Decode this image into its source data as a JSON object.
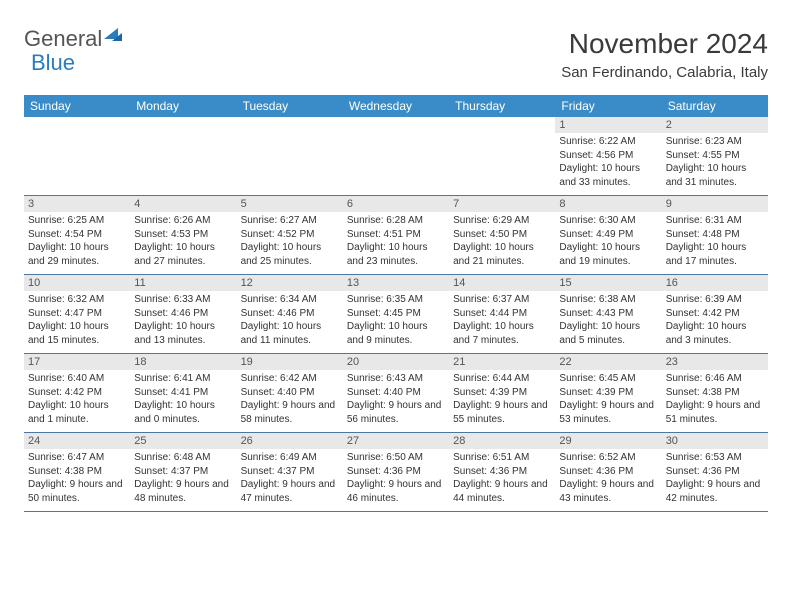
{
  "logo": {
    "text1": "General",
    "text2": "Blue"
  },
  "title": "November 2024",
  "location": "San Ferdinando, Calabria, Italy",
  "colors": {
    "header_bg": "#3a8cc9",
    "header_text": "#ffffff",
    "daynum_bg": "#e8e8e8",
    "row_border": "#4a77a4",
    "body_text": "#333333",
    "title_text": "#3a3a3a"
  },
  "day_labels": [
    "Sunday",
    "Monday",
    "Tuesday",
    "Wednesday",
    "Thursday",
    "Friday",
    "Saturday"
  ],
  "first_weekday": 5,
  "days": [
    {
      "n": 1,
      "sunrise": "6:22 AM",
      "sunset": "4:56 PM",
      "daylight": "10 hours and 33 minutes."
    },
    {
      "n": 2,
      "sunrise": "6:23 AM",
      "sunset": "4:55 PM",
      "daylight": "10 hours and 31 minutes."
    },
    {
      "n": 3,
      "sunrise": "6:25 AM",
      "sunset": "4:54 PM",
      "daylight": "10 hours and 29 minutes."
    },
    {
      "n": 4,
      "sunrise": "6:26 AM",
      "sunset": "4:53 PM",
      "daylight": "10 hours and 27 minutes."
    },
    {
      "n": 5,
      "sunrise": "6:27 AM",
      "sunset": "4:52 PM",
      "daylight": "10 hours and 25 minutes."
    },
    {
      "n": 6,
      "sunrise": "6:28 AM",
      "sunset": "4:51 PM",
      "daylight": "10 hours and 23 minutes."
    },
    {
      "n": 7,
      "sunrise": "6:29 AM",
      "sunset": "4:50 PM",
      "daylight": "10 hours and 21 minutes."
    },
    {
      "n": 8,
      "sunrise": "6:30 AM",
      "sunset": "4:49 PM",
      "daylight": "10 hours and 19 minutes."
    },
    {
      "n": 9,
      "sunrise": "6:31 AM",
      "sunset": "4:48 PM",
      "daylight": "10 hours and 17 minutes."
    },
    {
      "n": 10,
      "sunrise": "6:32 AM",
      "sunset": "4:47 PM",
      "daylight": "10 hours and 15 minutes."
    },
    {
      "n": 11,
      "sunrise": "6:33 AM",
      "sunset": "4:46 PM",
      "daylight": "10 hours and 13 minutes."
    },
    {
      "n": 12,
      "sunrise": "6:34 AM",
      "sunset": "4:46 PM",
      "daylight": "10 hours and 11 minutes."
    },
    {
      "n": 13,
      "sunrise": "6:35 AM",
      "sunset": "4:45 PM",
      "daylight": "10 hours and 9 minutes."
    },
    {
      "n": 14,
      "sunrise": "6:37 AM",
      "sunset": "4:44 PM",
      "daylight": "10 hours and 7 minutes."
    },
    {
      "n": 15,
      "sunrise": "6:38 AM",
      "sunset": "4:43 PM",
      "daylight": "10 hours and 5 minutes."
    },
    {
      "n": 16,
      "sunrise": "6:39 AM",
      "sunset": "4:42 PM",
      "daylight": "10 hours and 3 minutes."
    },
    {
      "n": 17,
      "sunrise": "6:40 AM",
      "sunset": "4:42 PM",
      "daylight": "10 hours and 1 minute."
    },
    {
      "n": 18,
      "sunrise": "6:41 AM",
      "sunset": "4:41 PM",
      "daylight": "10 hours and 0 minutes."
    },
    {
      "n": 19,
      "sunrise": "6:42 AM",
      "sunset": "4:40 PM",
      "daylight": "9 hours and 58 minutes."
    },
    {
      "n": 20,
      "sunrise": "6:43 AM",
      "sunset": "4:40 PM",
      "daylight": "9 hours and 56 minutes."
    },
    {
      "n": 21,
      "sunrise": "6:44 AM",
      "sunset": "4:39 PM",
      "daylight": "9 hours and 55 minutes."
    },
    {
      "n": 22,
      "sunrise": "6:45 AM",
      "sunset": "4:39 PM",
      "daylight": "9 hours and 53 minutes."
    },
    {
      "n": 23,
      "sunrise": "6:46 AM",
      "sunset": "4:38 PM",
      "daylight": "9 hours and 51 minutes."
    },
    {
      "n": 24,
      "sunrise": "6:47 AM",
      "sunset": "4:38 PM",
      "daylight": "9 hours and 50 minutes."
    },
    {
      "n": 25,
      "sunrise": "6:48 AM",
      "sunset": "4:37 PM",
      "daylight": "9 hours and 48 minutes."
    },
    {
      "n": 26,
      "sunrise": "6:49 AM",
      "sunset": "4:37 PM",
      "daylight": "9 hours and 47 minutes."
    },
    {
      "n": 27,
      "sunrise": "6:50 AM",
      "sunset": "4:36 PM",
      "daylight": "9 hours and 46 minutes."
    },
    {
      "n": 28,
      "sunrise": "6:51 AM",
      "sunset": "4:36 PM",
      "daylight": "9 hours and 44 minutes."
    },
    {
      "n": 29,
      "sunrise": "6:52 AM",
      "sunset": "4:36 PM",
      "daylight": "9 hours and 43 minutes."
    },
    {
      "n": 30,
      "sunrise": "6:53 AM",
      "sunset": "4:36 PM",
      "daylight": "9 hours and 42 minutes."
    }
  ],
  "labels": {
    "sunrise": "Sunrise: ",
    "sunset": "Sunset: ",
    "daylight": "Daylight: "
  }
}
